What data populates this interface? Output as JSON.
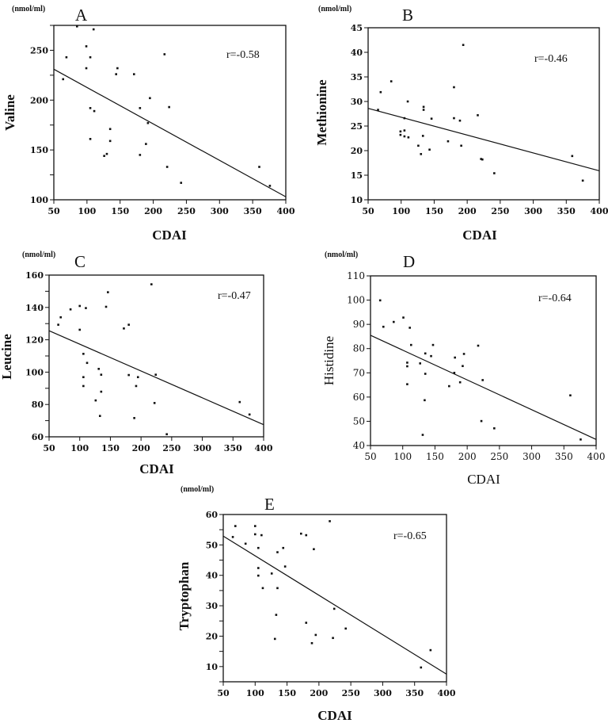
{
  "chart_data": [
    {
      "panel": "A",
      "type": "scatter",
      "unit": "(nmol/ml)",
      "xlabel": "CDAI",
      "ylabel": "Valine",
      "annotation": "r=-0.58",
      "xlim": [
        50,
        400
      ],
      "ylim": [
        100,
        275
      ],
      "xticks": [
        50,
        100,
        150,
        200,
        250,
        300,
        350,
        400
      ],
      "yticks": [
        100,
        150,
        200,
        250
      ],
      "grid": false,
      "x": [
        85,
        110,
        99,
        69,
        105,
        99,
        146,
        144,
        171,
        64,
        217,
        195,
        180,
        224,
        105,
        111,
        192,
        135,
        135,
        105,
        189,
        126,
        130,
        180,
        221,
        242,
        360,
        376
      ],
      "y": [
        274,
        271,
        254,
        243,
        243,
        232,
        232,
        226,
        226,
        221,
        246,
        202,
        192,
        193,
        192,
        189,
        177,
        171,
        159,
        161,
        156,
        144,
        146,
        145,
        133,
        117,
        133,
        114
      ],
      "regression": {
        "x": [
          50,
          400
        ],
        "y": [
          231,
          103
        ]
      }
    },
    {
      "panel": "B",
      "type": "scatter",
      "unit": "(nmol/ml)",
      "xlabel": "CDAI",
      "ylabel": "Methionine",
      "annotation": "r=-0.46",
      "xlim": [
        50,
        400
      ],
      "ylim": [
        10,
        45
      ],
      "xticks": [
        50,
        100,
        150,
        200,
        250,
        300,
        350,
        400
      ],
      "yticks": [
        10,
        15,
        20,
        25,
        30,
        35,
        40,
        45
      ],
      "grid": false,
      "x": [
        194,
        85,
        69,
        180,
        110,
        134,
        134,
        65,
        216,
        180,
        146,
        189,
        105,
        99,
        99,
        105,
        105,
        111,
        133,
        171,
        126,
        191,
        143,
        130,
        221,
        223,
        241,
        359,
        375
      ],
      "y": [
        41.5,
        34.1,
        31.9,
        32.9,
        30,
        28.9,
        28.3,
        28.3,
        27.2,
        26.6,
        26.5,
        26.1,
        26.6,
        23.9,
        23.2,
        24.1,
        22.9,
        22.7,
        23,
        21.9,
        21,
        21,
        20.2,
        19.3,
        18.3,
        18.2,
        15.4,
        18.9,
        13.9
      ],
      "regression": {
        "x": [
          50,
          400
        ],
        "y": [
          28.6,
          15.9
        ]
      }
    },
    {
      "panel": "C",
      "type": "scatter",
      "unit": "(nmol/ml)",
      "xlabel": "CDAI",
      "ylabel": "Leucine",
      "annotation": "r=-0.47",
      "xlim": [
        50,
        400
      ],
      "ylim": [
        60,
        160
      ],
      "xticks": [
        50,
        100,
        150,
        200,
        250,
        300,
        350,
        400
      ],
      "yticks": [
        60,
        80,
        100,
        120,
        140,
        160
      ],
      "grid": false,
      "x": [
        217,
        146,
        143,
        100,
        110,
        85,
        69,
        65,
        100,
        172,
        180,
        106,
        112,
        131,
        135,
        180,
        224,
        195,
        106,
        106,
        192,
        135,
        126,
        222,
        133,
        189,
        242,
        361,
        377
      ],
      "y": [
        154.3,
        149.4,
        140.4,
        140.9,
        139.6,
        138.8,
        133.9,
        129.3,
        126.2,
        127,
        129.3,
        111.3,
        105.7,
        102,
        98.4,
        98.2,
        98.4,
        96.9,
        96.9,
        91.4,
        91.4,
        87.9,
        82.5,
        80.9,
        72.9,
        71.6,
        61.6,
        81.5,
        73.8
      ],
      "regression": {
        "x": [
          50,
          400
        ],
        "y": [
          125.6,
          67.5
        ]
      }
    },
    {
      "panel": "D",
      "type": "scatter",
      "unit": "(nmol/ml)",
      "xlabel": "CDAI",
      "ylabel": "Histidine",
      "annotation": "r=-0.64",
      "xlim": [
        50,
        400
      ],
      "ylim": [
        40,
        110
      ],
      "xticks": [
        50,
        100,
        150,
        200,
        250,
        300,
        350,
        400
      ],
      "yticks": [
        40,
        50,
        60,
        70,
        80,
        90,
        100,
        110
      ],
      "grid": false,
      "x": [
        65,
        70,
        86,
        101,
        111,
        113,
        147,
        217,
        135,
        195,
        144,
        181,
        127,
        107,
        107,
        193,
        135,
        180,
        224,
        189,
        172,
        107,
        134,
        222,
        242,
        131,
        360,
        376
      ],
      "y": [
        99.9,
        89,
        91,
        92.8,
        88.6,
        81.5,
        81.5,
        81.2,
        78,
        77.8,
        76.9,
        76.3,
        73.9,
        74.2,
        72.7,
        72.8,
        69.6,
        70,
        67,
        66.1,
        64.5,
        65.3,
        58.7,
        50.1,
        47.1,
        44.4,
        60.7,
        42.5
      ],
      "regression": {
        "x": [
          50,
          400
        ],
        "y": [
          85.5,
          42.5
        ]
      }
    },
    {
      "panel": "E",
      "type": "scatter",
      "unit": "(nmol/ml)",
      "xlabel": "CDAI",
      "ylabel": "Tryptophan",
      "annotation": "r=-0.65",
      "xlim": [
        50,
        400
      ],
      "ylim": [
        5,
        60
      ],
      "xticks": [
        50,
        100,
        150,
        200,
        250,
        300,
        350,
        400
      ],
      "yticks": [
        10,
        20,
        30,
        40,
        50,
        60
      ],
      "grid": false,
      "x": [
        217,
        69,
        100,
        65,
        100,
        110,
        172,
        180,
        85,
        105,
        144,
        192,
        135,
        147,
        105,
        105,
        126,
        112,
        135,
        224,
        133,
        180,
        242,
        195,
        131,
        222,
        189,
        360,
        375
      ],
      "y": [
        57.8,
        56.2,
        56.2,
        52.6,
        53.5,
        53.2,
        53.7,
        53.2,
        50.4,
        49,
        49,
        48.6,
        47.6,
        42.9,
        42.4,
        39.9,
        40.6,
        35.8,
        35.8,
        29,
        27,
        24.4,
        22.5,
        20.4,
        19.1,
        19.4,
        17.7,
        9.7,
        15.4
      ],
      "regression": {
        "x": [
          50,
          400
        ],
        "y": [
          52.9,
          7.5
        ]
      }
    }
  ]
}
